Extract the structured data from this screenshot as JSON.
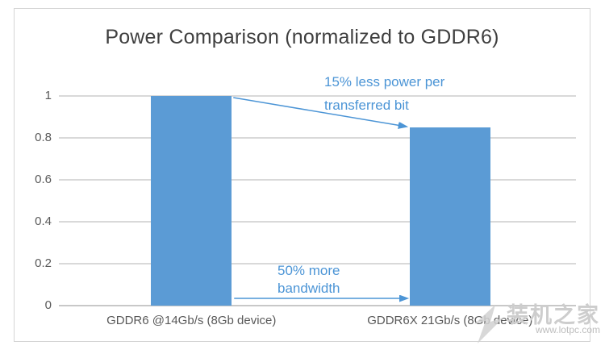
{
  "watermark": {
    "site_name": "装机之家",
    "site_url": "www.lotpc.com"
  },
  "chart_data": {
    "type": "bar",
    "title": "Power Comparison (normalized to GDDR6)",
    "categories": [
      "GDDR6 @14Gb/s (8Gb device)",
      "GDDR6X 21Gb/s (8Gb device)"
    ],
    "values": [
      1,
      0.85
    ],
    "xlabel": "",
    "ylabel": "",
    "ylim": [
      0,
      1
    ],
    "yticks": [
      0,
      0.2,
      0.4,
      0.6,
      0.8,
      1
    ],
    "ytick_labels": [
      "0",
      "0.2",
      "0.4",
      "0.6",
      "0.8",
      "1"
    ],
    "grid": true,
    "legend": false,
    "bar_color": "#5B9BD5",
    "gridline_color": "#D9D9D9",
    "annotation_color": "#4C95D6",
    "annotations": [
      {
        "lines": [
          "15% less power per",
          "transferred bit"
        ],
        "arrow": "from top of GDDR6 bar to top of GDDR6X bar"
      },
      {
        "lines": [
          "50% more",
          "bandwidth"
        ],
        "arrow": "from bottom of GDDR6 bar to bottom of GDDR6X bar"
      }
    ]
  }
}
